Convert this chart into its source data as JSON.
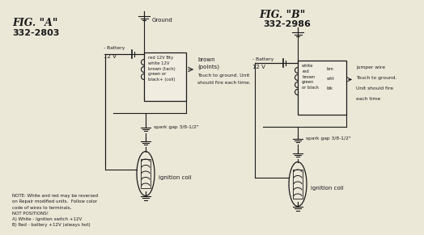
{
  "bg_color": "#ebe8d8",
  "line_color": "#1a1a1a",
  "title_a": "FIG. \"A\"",
  "model_a": "332-2803",
  "title_b": "FIG. \"B\"",
  "model_b": "332-2986",
  "note_text": "NOTE: White and red may be reversed\non Repair modified units.  Follow color\ncode of wires to terminals,\nNOT POSITIONS!\nA) White - Ignition switch +12V\nB) Red - battery +12V (always hot)",
  "box_a_lines": [
    "red 12V Bty",
    "white 12V",
    "brown (tach)",
    "green or",
    "black+ (coil)"
  ],
  "box_a_right_1": "brown",
  "box_a_right_2": "(points)",
  "box_a_right_3": "Touch to ground. Unit",
  "box_a_right_4": "should fire each time.",
  "box_b_lines": [
    "white",
    "red",
    "brown",
    "green",
    "or black"
  ],
  "box_b_right_col1": [
    "brn",
    "wht",
    "blk"
  ],
  "box_b_right_labels": [
    "jumper wire",
    "Touch to ground.",
    "Unit should fire",
    "each time"
  ],
  "battery_label": "- Battery",
  "v12_label": "12 V",
  "spark_gap_label": "spark gap 3/8-1/2\"",
  "ignition_label": "ignition coil",
  "ground_label": "Ground"
}
